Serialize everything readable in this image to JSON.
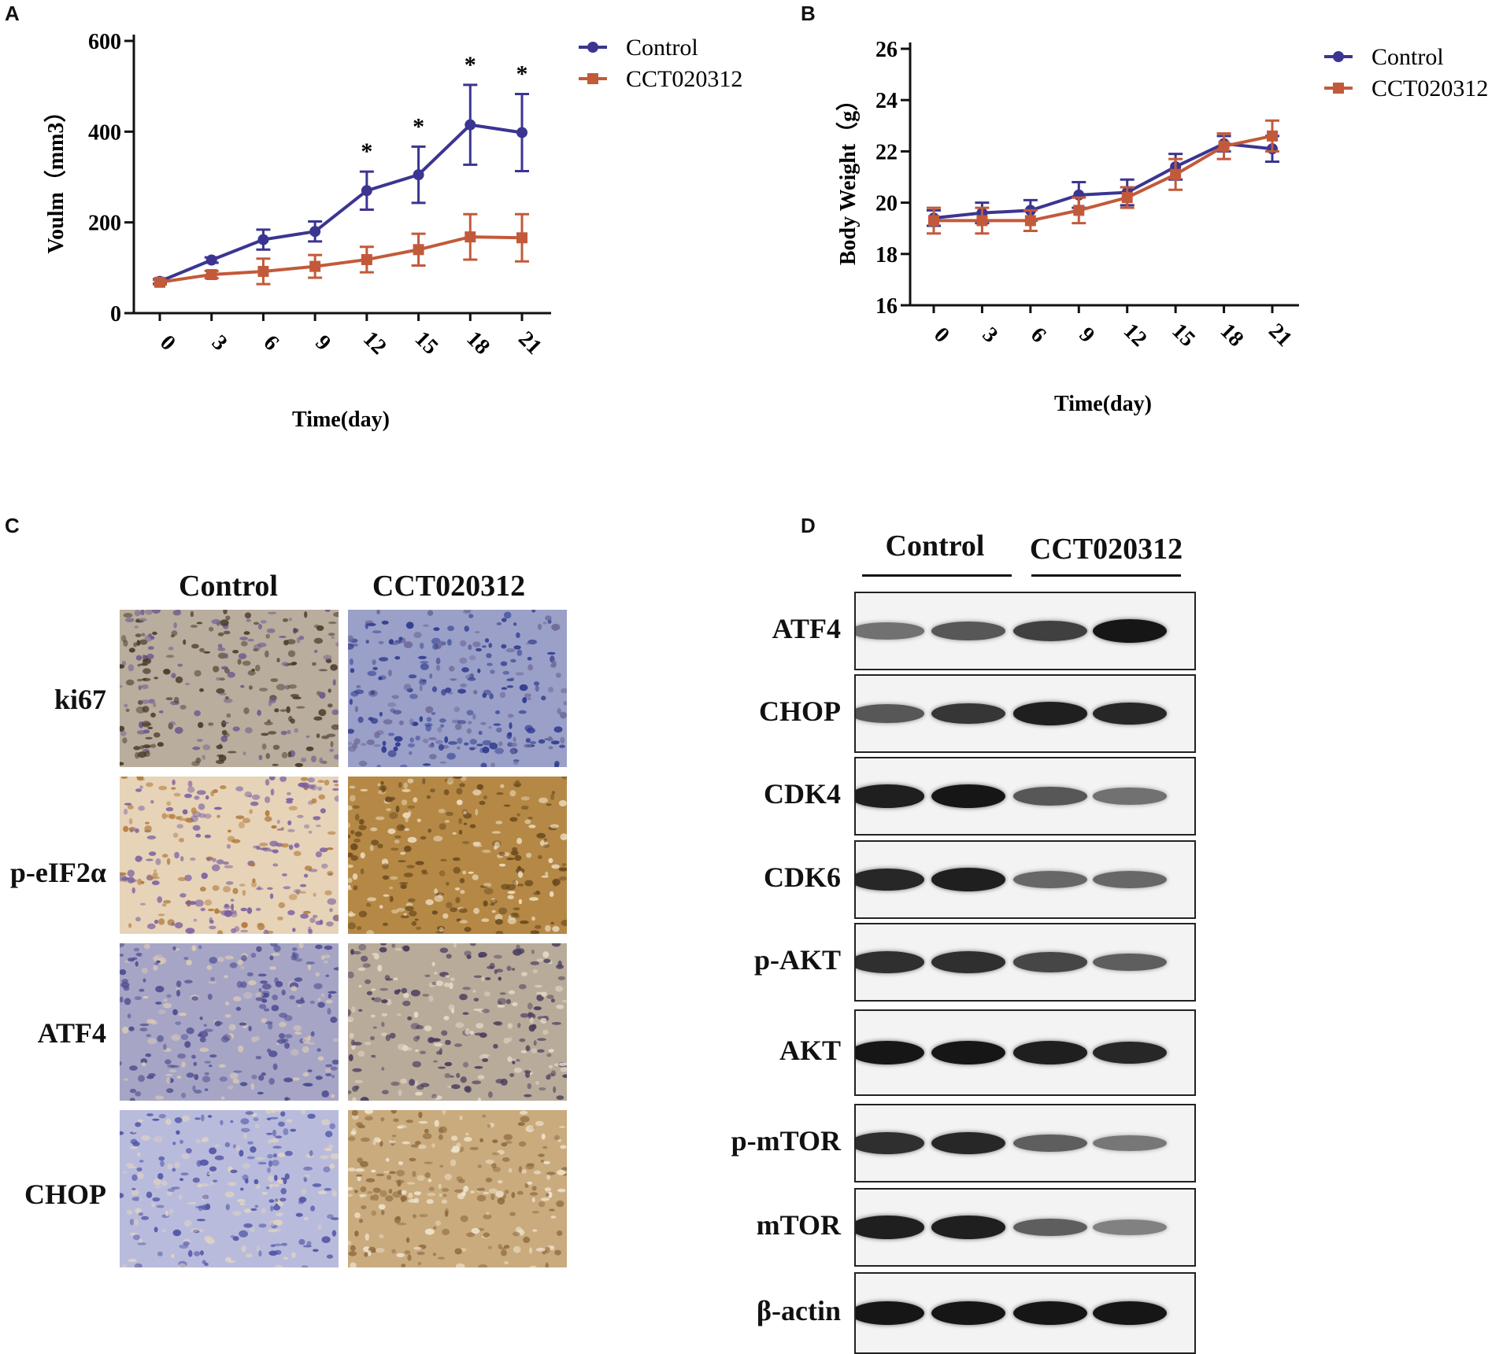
{
  "panels": {
    "a": "A",
    "b": "B",
    "c": "C",
    "d": "D"
  },
  "chart_data": [
    {
      "type": "line",
      "panel": "A",
      "xlabel": "Time(day)",
      "ylabel": "Voulm（mm3）",
      "x": [
        0,
        3,
        6,
        9,
        12,
        15,
        18,
        21
      ],
      "xticks": [
        "0",
        "3",
        "6",
        "9",
        "12",
        "15",
        "18",
        "21"
      ],
      "yticks": [
        "0",
        "200",
        "400",
        "600"
      ],
      "ylim": [
        0,
        600
      ],
      "legend_position": "top-right",
      "series": [
        {
          "name": "Control",
          "color": "#3b3591",
          "marker": "circle",
          "values": [
            70,
            117,
            162,
            180,
            270,
            305,
            415,
            398
          ],
          "errors": [
            5,
            6,
            22,
            22,
            42,
            62,
            88,
            85
          ]
        },
        {
          "name": "CCT020312",
          "color": "#c25a3a",
          "marker": "square",
          "values": [
            68,
            85,
            92,
            103,
            118,
            140,
            168,
            166
          ],
          "errors": [
            5,
            8,
            28,
            25,
            28,
            35,
            50,
            52
          ]
        }
      ],
      "annotations": [
        {
          "x": 12,
          "text": "*"
        },
        {
          "x": 15,
          "text": "*"
        },
        {
          "x": 18,
          "text": "*"
        },
        {
          "x": 21,
          "text": "*"
        }
      ]
    },
    {
      "type": "line",
      "panel": "B",
      "xlabel": "Time(day)",
      "ylabel": "Body Weight（g）",
      "x": [
        0,
        3,
        6,
        9,
        12,
        15,
        18,
        21
      ],
      "xticks": [
        "0",
        "3",
        "6",
        "9",
        "12",
        "15",
        "18",
        "21"
      ],
      "yticks": [
        "16",
        "18",
        "20",
        "22",
        "24",
        "26"
      ],
      "ylim": [
        16,
        26
      ],
      "legend_position": "top-right",
      "series": [
        {
          "name": "Control",
          "color": "#3b3591",
          "marker": "circle",
          "values": [
            19.4,
            19.6,
            19.7,
            20.3,
            20.4,
            21.4,
            22.3,
            22.1
          ],
          "errors": [
            0.3,
            0.4,
            0.4,
            0.5,
            0.5,
            0.5,
            0.3,
            0.5
          ]
        },
        {
          "name": "CCT020312",
          "color": "#c25a3a",
          "marker": "square",
          "values": [
            19.3,
            19.3,
            19.3,
            19.7,
            20.2,
            21.1,
            22.2,
            22.6
          ],
          "errors": [
            0.5,
            0.5,
            0.4,
            0.5,
            0.4,
            0.6,
            0.5,
            0.6
          ]
        }
      ],
      "annotations": []
    }
  ],
  "ihc": {
    "columns": [
      "Control",
      "CCT020312"
    ],
    "rows": [
      "ki67",
      "p-eIF2α",
      "ATF4",
      "CHOP"
    ]
  },
  "western": {
    "groups": [
      "Control",
      "CCT020312"
    ],
    "rows": [
      {
        "label": "ATF4",
        "intensity": [
          0.45,
          0.6,
          0.75,
          1.0
        ]
      },
      {
        "label": "CHOP",
        "intensity": [
          0.6,
          0.8,
          0.95,
          0.9
        ]
      },
      {
        "label": "CDK4",
        "intensity": [
          0.95,
          1.0,
          0.6,
          0.45
        ]
      },
      {
        "label": "CDK6",
        "intensity": [
          0.9,
          0.95,
          0.5,
          0.5
        ]
      },
      {
        "label": "p-AKT",
        "intensity": [
          0.85,
          0.85,
          0.7,
          0.55
        ]
      },
      {
        "label": "AKT",
        "intensity": [
          1.0,
          1.0,
          0.95,
          0.9
        ]
      },
      {
        "label": "p-mTOR",
        "intensity": [
          0.85,
          0.9,
          0.55,
          0.4
        ]
      },
      {
        "label": "mTOR",
        "intensity": [
          0.95,
          0.95,
          0.55,
          0.35
        ]
      },
      {
        "label": "β-actin",
        "intensity": [
          1.0,
          1.0,
          1.0,
          1.0
        ]
      }
    ]
  }
}
